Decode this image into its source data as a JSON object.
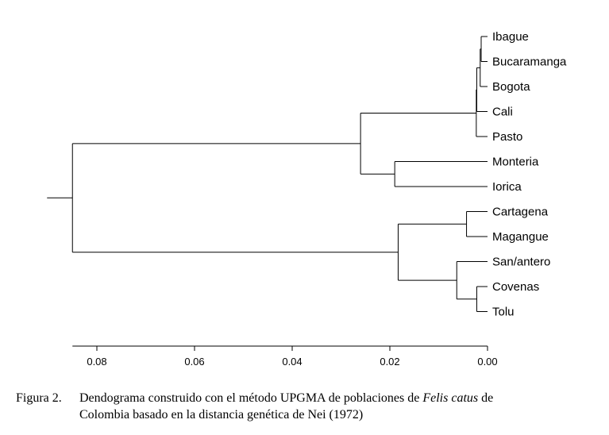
{
  "chart_data": {
    "type": "dendrogram",
    "method": "UPGMA",
    "leaves": [
      "Ibague",
      "Bucaramanga",
      "Bogota",
      "Cali",
      "Pasto",
      "Monteria",
      "Iorica",
      "Cartagena",
      "Magangue",
      "San/antero",
      "Covenas",
      "Tolu"
    ],
    "merges": [
      {
        "a": "Ibague",
        "b": "Bucaramanga",
        "height": 0.0013
      },
      {
        "a": "Ibague+Bucaramanga",
        "b": "Bogota",
        "height": 0.0015
      },
      {
        "a": "Ibague+Bucaramanga+Bogota",
        "b": "Cali",
        "height": 0.0022
      },
      {
        "a": "Ibague+Bucaramanga+Bogota+Cali",
        "b": "Pasto",
        "height": 0.0023
      },
      {
        "a": "Monteria",
        "b": "Iorica",
        "height": 0.019
      },
      {
        "a": "Ibague..Pasto",
        "b": "Monteria+Iorica",
        "height": 0.026
      },
      {
        "a": "Cartagena",
        "b": "Magangue",
        "height": 0.0043
      },
      {
        "a": "Covenas",
        "b": "Tolu",
        "height": 0.0022
      },
      {
        "a": "San/antero",
        "b": "Covenas+Tolu",
        "height": 0.0063
      },
      {
        "a": "Cartagena+Magangue",
        "b": "San/antero+Covenas+Tolu",
        "height": 0.0183
      },
      {
        "a": "north-group",
        "b": "caribbean-group",
        "height": 0.085
      }
    ],
    "x_axis": {
      "ticks": [
        0.08,
        0.06,
        0.04,
        0.02,
        0.0
      ],
      "tick_labels": [
        "0.08",
        "0.06",
        "0.04",
        "0.02",
        "0.00"
      ],
      "range": [
        0.085,
        0.0
      ],
      "reversed": true
    }
  },
  "caption": {
    "number": "Figura 2.",
    "text_before_italic": "Dendograma construido con el método UPGMA de poblaciones de ",
    "italic": "Felis catus",
    "text_after_italic": " de",
    "line2": "Colombia basado en la distancia genética de Nei (1972)"
  }
}
